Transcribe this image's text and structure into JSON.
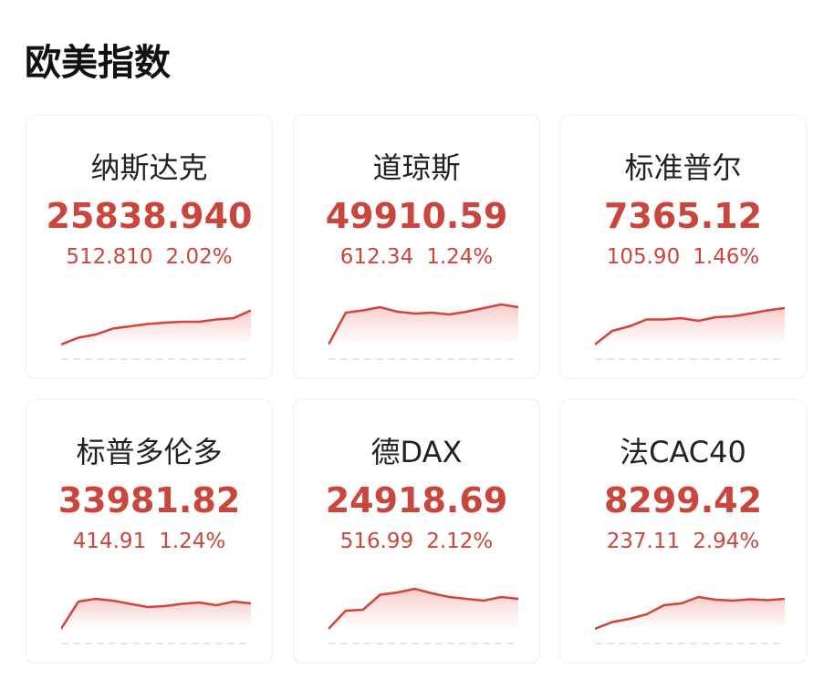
{
  "header": {
    "title": "欧美指数"
  },
  "cards": [
    {
      "name": "纳斯达克",
      "price": "25838.940",
      "change": "512.810",
      "percent": "2.02%",
      "spark": [
        0,
        15,
        22,
        35,
        40,
        45,
        48,
        50,
        50,
        55,
        58,
        75
      ]
    },
    {
      "name": "道琼斯",
      "price": "49910.59",
      "change": "612.34",
      "percent": "1.24%",
      "spark": [
        0,
        70,
        75,
        82,
        72,
        68,
        70,
        66,
        72,
        80,
        88,
        82
      ]
    },
    {
      "name": "标准普尔",
      "price": "7365.12",
      "change": "105.90",
      "percent": "1.46%",
      "spark": [
        0,
        30,
        40,
        55,
        55,
        58,
        52,
        60,
        62,
        68,
        75,
        80
      ]
    },
    {
      "name": "标普多伦多",
      "price": "33981.82",
      "change": "414.91",
      "percent": "1.24%",
      "spark": [
        0,
        60,
        66,
        62,
        55,
        48,
        50,
        55,
        58,
        52,
        60,
        56
      ]
    },
    {
      "name": "德DAX",
      "price": "24918.69",
      "change": "516.99",
      "percent": "2.12%",
      "spark": [
        0,
        40,
        42,
        75,
        80,
        88,
        78,
        70,
        66,
        62,
        70,
        66
      ]
    },
    {
      "name": "法CAC40",
      "price": "8299.42",
      "change": "237.11",
      "percent": "2.94%",
      "spark": [
        0,
        15,
        22,
        32,
        52,
        56,
        70,
        64,
        62,
        65,
        63,
        66
      ]
    }
  ]
}
